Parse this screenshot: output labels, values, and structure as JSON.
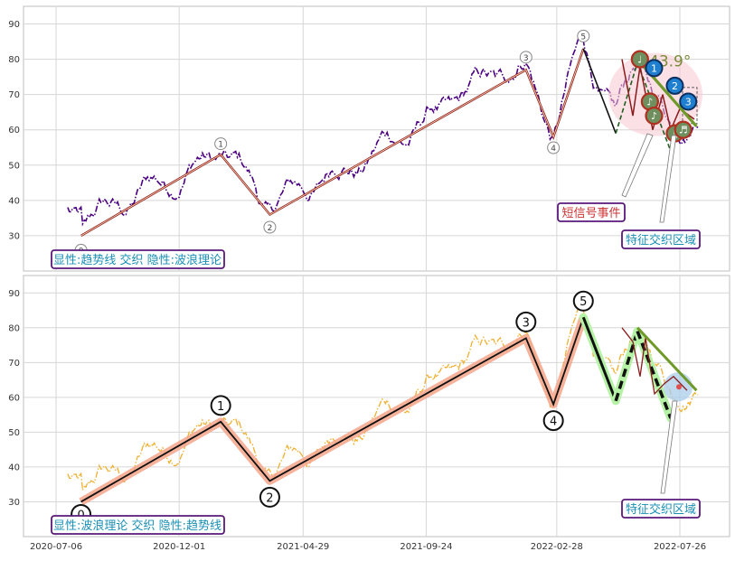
{
  "chart_data": {
    "type": "line",
    "x_ticks": [
      "2020-07-06",
      "2020-12-01",
      "2021-04-29",
      "2021-09-24",
      "2022-02-28",
      "2022-07-26"
    ],
    "panels": [
      {
        "caption": "显性:趋势线 交织 隐性:波浪理论",
        "ylim": [
          20,
          95
        ],
        "yticks": [
          30,
          40,
          50,
          60,
          70,
          80,
          90
        ],
        "price_color": "#4b0082",
        "price_style": "dashdot",
        "wave_labels": [
          "0",
          "1",
          "2",
          "3",
          "4",
          "5"
        ],
        "wave_points": [
          {
            "x": "2020-08-05",
            "y": 30
          },
          {
            "x": "2021-01-20",
            "y": 53
          },
          {
            "x": "2021-03-20",
            "y": 36
          },
          {
            "x": "2022-01-22",
            "y": 77
          },
          {
            "x": "2022-02-24",
            "y": 58
          },
          {
            "x": "2022-04-01",
            "y": 83
          }
        ],
        "extra_segments": [
          {
            "x": [
              "2022-04-01",
              "2022-05-10"
            ],
            "y": [
              83,
              59
            ]
          },
          {
            "x": [
              "2022-05-10",
              "2022-06-05"
            ],
            "y": [
              59,
              79
            ]
          },
          {
            "x": [
              "2022-06-05",
              "2022-07-15"
            ],
            "y": [
              79,
              54
            ]
          }
        ],
        "trend_angle_label": "43.9°",
        "trend_line": {
          "x": [
            "2022-06-05",
            "2022-08-15"
          ],
          "y": [
            80,
            61
          ]
        },
        "signal_markers": [
          {
            "x": "2022-06-08",
            "y": 80,
            "symbol": "♩",
            "kind": "green"
          },
          {
            "x": "2022-06-20",
            "y": 68,
            "symbol": "♪",
            "kind": "green"
          },
          {
            "x": "2022-06-25",
            "y": 64,
            "symbol": "♪",
            "kind": "green"
          },
          {
            "x": "2022-07-20",
            "y": 59,
            "symbol": "♫",
            "kind": "green"
          },
          {
            "x": "2022-07-30",
            "y": 60,
            "symbol": "♬",
            "kind": "green"
          },
          {
            "x": "2022-06-25",
            "y": 77.5,
            "symbol": "1",
            "kind": "blue"
          },
          {
            "x": "2022-07-20",
            "y": 72.5,
            "symbol": "2",
            "kind": "blue"
          },
          {
            "x": "2022-08-05",
            "y": 68,
            "symbol": "3",
            "kind": "blue"
          }
        ],
        "annotations": [
          {
            "text": "短信号事件",
            "color": "#cc3333"
          },
          {
            "text": "特征交织区域",
            "color": "#1a8fb5"
          }
        ]
      },
      {
        "caption": "显性:波浪理论 交织 隐性:趋势线",
        "ylim": [
          20,
          95
        ],
        "yticks": [
          30,
          40,
          50,
          60,
          70,
          80,
          90
        ],
        "price_color": "#f0b030",
        "price_style": "dashdot",
        "wave_labels": [
          "0",
          "1",
          "2",
          "3",
          "4",
          "5"
        ],
        "wave_points": [
          {
            "x": "2020-08-05",
            "y": 30
          },
          {
            "x": "2021-01-20",
            "y": 53
          },
          {
            "x": "2021-03-20",
            "y": 36
          },
          {
            "x": "2022-01-22",
            "y": 77
          },
          {
            "x": "2022-02-24",
            "y": 58
          },
          {
            "x": "2022-04-01",
            "y": 83
          }
        ],
        "extra_segments": [
          {
            "x": [
              "2022-04-01",
              "2022-05-10"
            ],
            "y": [
              83,
              59
            ]
          },
          {
            "x": [
              "2022-05-10",
              "2022-06-05"
            ],
            "y": [
              59,
              79
            ]
          },
          {
            "x": [
              "2022-06-05",
              "2022-07-15"
            ],
            "y": [
              79,
              54
            ]
          }
        ],
        "trend_line": {
          "x": [
            "2022-06-05",
            "2022-08-15"
          ],
          "y": [
            80,
            62
          ]
        },
        "annotations": [
          {
            "text": "特征交织区域",
            "color": "#1a8fb5"
          }
        ]
      }
    ]
  }
}
